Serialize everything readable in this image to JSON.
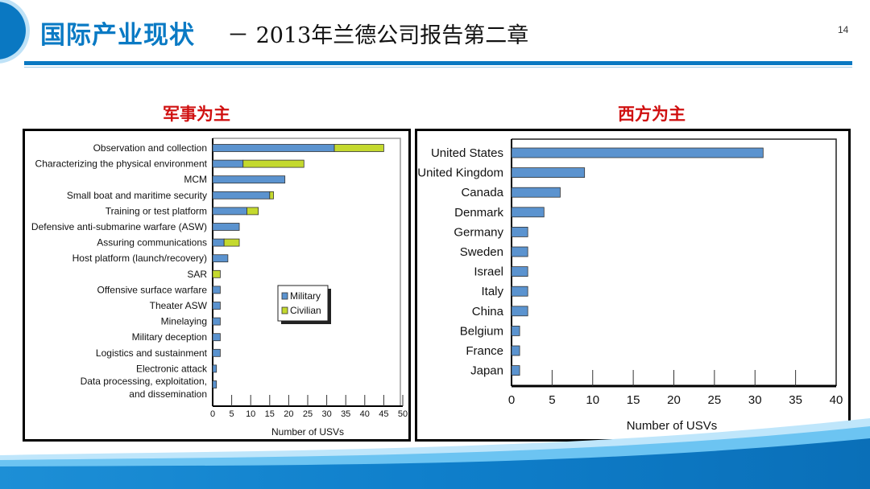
{
  "header": {
    "title": "国际产业现状",
    "subtitle": "－ 2013年兰德公司报告第二章",
    "page_number": "14"
  },
  "left_heading": "军事为主",
  "right_heading": "西方为主",
  "colors": {
    "military": "#5b93cf",
    "civilian": "#c4d92e",
    "heading": "#d01010",
    "brand": "#0a78c2"
  },
  "chart_data": [
    {
      "type": "bar",
      "orientation": "horizontal",
      "stacked": true,
      "title": "",
      "categories": [
        "Observation and collection",
        "Characterizing the physical environment",
        "MCM",
        "Small boat and maritime security",
        "Training or test platform",
        "Defensive anti-submarine warfare (ASW)",
        "Assuring communications",
        "Host platform (launch/recovery)",
        "SAR",
        "Offensive surface warfare",
        "Theater ASW",
        "Minelaying",
        "Military deception",
        "Logistics and sustainment",
        "Electronic attack",
        "Data processing, exploitation,|and dissemination"
      ],
      "series": [
        {
          "name": "Military",
          "values": [
            32,
            8,
            19,
            15,
            9,
            7,
            3,
            4,
            0,
            2,
            2,
            2,
            2,
            2,
            1,
            1
          ]
        },
        {
          "name": "Civilian",
          "values": [
            13,
            16,
            0,
            1,
            3,
            0,
            4,
            0,
            2,
            0,
            0,
            0,
            0,
            0,
            0,
            0
          ]
        }
      ],
      "xlabel": "Number of USVs",
      "xlim": [
        0,
        50
      ],
      "xticks": [
        "0",
        "5",
        "10",
        "15",
        "20",
        "25",
        "30",
        "35",
        "40",
        "45",
        "50"
      ],
      "legend": "center-right",
      "grid": false
    },
    {
      "type": "bar",
      "orientation": "horizontal",
      "title": "",
      "categories": [
        "United States",
        "United Kingdom",
        "Canada",
        "Denmark",
        "Germany",
        "Sweden",
        "Israel",
        "Italy",
        "China",
        "Belgium",
        "France",
        "Japan"
      ],
      "values": [
        31,
        9,
        6,
        4,
        2,
        2,
        2,
        2,
        2,
        1,
        1,
        1
      ],
      "xlabel": "Number of USVs",
      "xlim": [
        0,
        40
      ],
      "xticks": [
        "0",
        "5",
        "10",
        "15",
        "20",
        "25",
        "30",
        "35",
        "40"
      ],
      "grid": false
    }
  ]
}
